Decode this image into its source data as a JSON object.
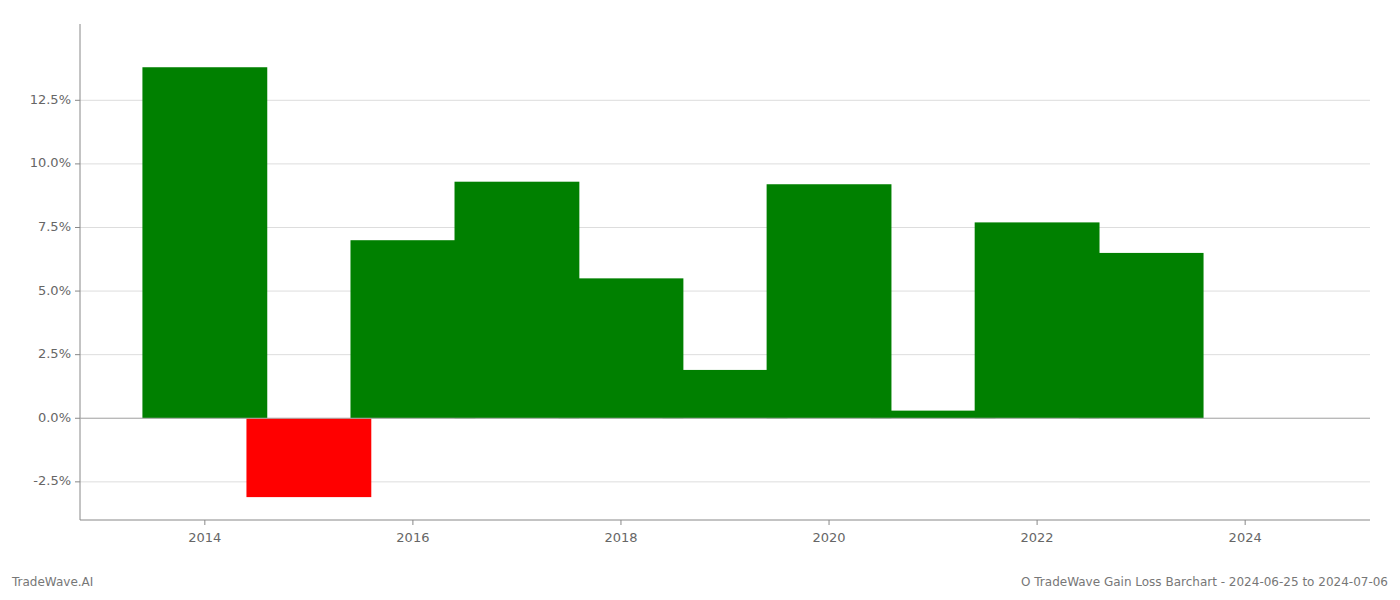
{
  "chart_data": {
    "type": "bar",
    "x": [
      2014,
      2015,
      2016,
      2017,
      2018,
      2019,
      2020,
      2021,
      2022,
      2023
    ],
    "values": [
      0.138,
      -0.031,
      0.07,
      0.093,
      0.055,
      0.019,
      0.092,
      0.003,
      0.077,
      0.065
    ],
    "colors": [
      "#008000",
      "#ff0000",
      "#008000",
      "#008000",
      "#008000",
      "#008000",
      "#008000",
      "#008000",
      "#008000",
      "#008000"
    ],
    "xlim": [
      2012.8,
      2025.2
    ],
    "xticks": [
      2014,
      2016,
      2018,
      2020,
      2022,
      2024
    ],
    "ylim": [
      -0.04,
      0.155
    ],
    "yticks": [
      {
        "value": -0.025,
        "label": "-2.5%"
      },
      {
        "value": 0.0,
        "label": "0.0%"
      },
      {
        "value": 0.025,
        "label": "2.5%"
      },
      {
        "value": 0.05,
        "label": "5.0%"
      },
      {
        "value": 0.075,
        "label": "7.5%"
      },
      {
        "value": 0.1,
        "label": "10.0%"
      },
      {
        "value": 0.125,
        "label": "12.5%"
      }
    ],
    "grid": true,
    "annotations": [
      "TradeWave.AI",
      "O TradeWave Gain Loss Barchart - 2024-06-25 to 2024-07-06"
    ]
  }
}
